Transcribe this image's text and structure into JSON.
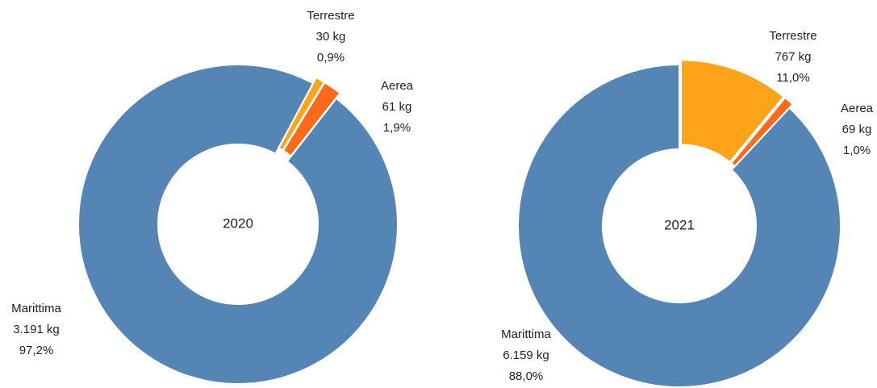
{
  "chart_data": [
    {
      "type": "pie",
      "donut": true,
      "title": "2020",
      "categories": [
        "Terrestre",
        "Aerea",
        "Marittima"
      ],
      "values": [
        30,
        61,
        3191
      ],
      "value_labels": [
        "30 kg",
        "61 kg",
        "3.191 kg"
      ],
      "percent_labels": [
        "0,9%",
        "1,9%",
        "97,2%"
      ],
      "colors": [
        "#ffa31a",
        "#ff6a1a",
        "#5585b5"
      ]
    },
    {
      "type": "pie",
      "donut": true,
      "title": "2021",
      "categories": [
        "Terrestre",
        "Aerea",
        "Marittima"
      ],
      "values": [
        767,
        69,
        6159
      ],
      "value_labels": [
        "767 kg",
        "69 kg",
        "6.159 kg"
      ],
      "percent_labels": [
        "11,0%",
        "1,0%",
        "88,0%"
      ],
      "colors": [
        "#ffa31a",
        "#ff6a1a",
        "#5585b5"
      ]
    }
  ]
}
